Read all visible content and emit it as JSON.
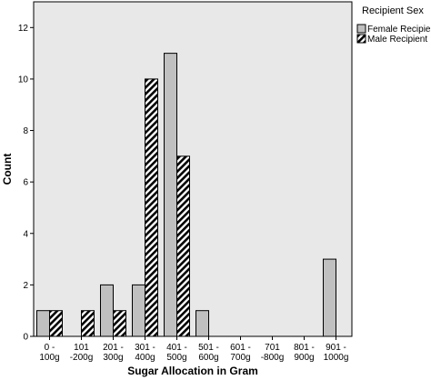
{
  "chart_data": {
    "type": "bar",
    "title": "",
    "xlabel": "Sugar Allocation in Gram",
    "ylabel": "Count",
    "ylim": [
      0,
      13
    ],
    "yticks": [
      0,
      2,
      4,
      6,
      8,
      10,
      12
    ],
    "grid": false,
    "legend_position": "top-right, outside plot",
    "categories": [
      [
        "0 -",
        "100g"
      ],
      [
        "101",
        "-200g"
      ],
      [
        "201 -",
        "300g"
      ],
      [
        "301 -",
        "400g"
      ],
      [
        "401 -",
        "500g"
      ],
      [
        "501 -",
        "600g"
      ],
      [
        "601 -",
        "700g"
      ],
      [
        "701",
        "-800g"
      ],
      [
        "801 -",
        "900g"
      ],
      [
        "901 -",
        "1000g"
      ]
    ],
    "series": [
      {
        "name": "Female Recipient",
        "style": "solid-gray",
        "color": "#c0c0c0",
        "values": [
          1,
          0,
          2,
          2,
          11,
          1,
          0,
          0,
          0,
          3
        ]
      },
      {
        "name": "Male Recipient",
        "style": "hatched",
        "color": "#000000",
        "values": [
          1,
          1,
          1,
          10,
          7,
          0,
          0,
          0,
          0,
          0
        ]
      }
    ],
    "plot_background": "#e8e8e8"
  },
  "legend": {
    "title": "Recipient Sex"
  }
}
